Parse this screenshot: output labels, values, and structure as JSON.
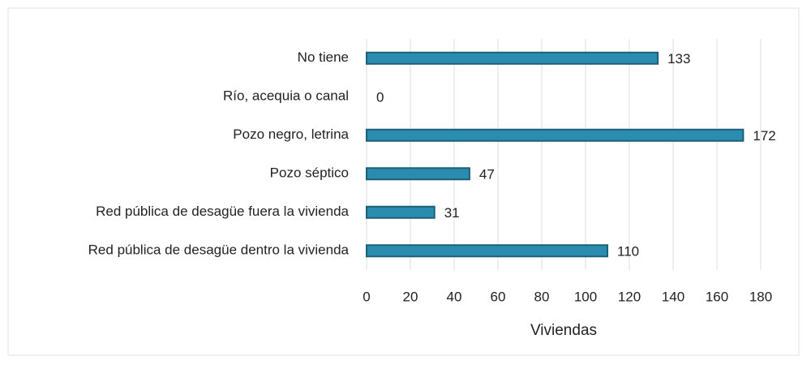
{
  "chart_data": {
    "type": "bar",
    "orientation": "horizontal",
    "categories": [
      "No tiene",
      "Río, acequia o canal",
      "Pozo negro, letrina",
      "Pozo séptico",
      "Red pública de desagüe fuera la vivienda",
      "Red pública de desagüe dentro la vivienda"
    ],
    "values": [
      133,
      0,
      172,
      47,
      31,
      110
    ],
    "color": "#2a8db0",
    "xlabel": "Viviendas",
    "xlim": [
      0,
      180
    ],
    "xticks": [
      0,
      20,
      40,
      60,
      80,
      100,
      120,
      140,
      160,
      180
    ],
    "grid": true
  }
}
